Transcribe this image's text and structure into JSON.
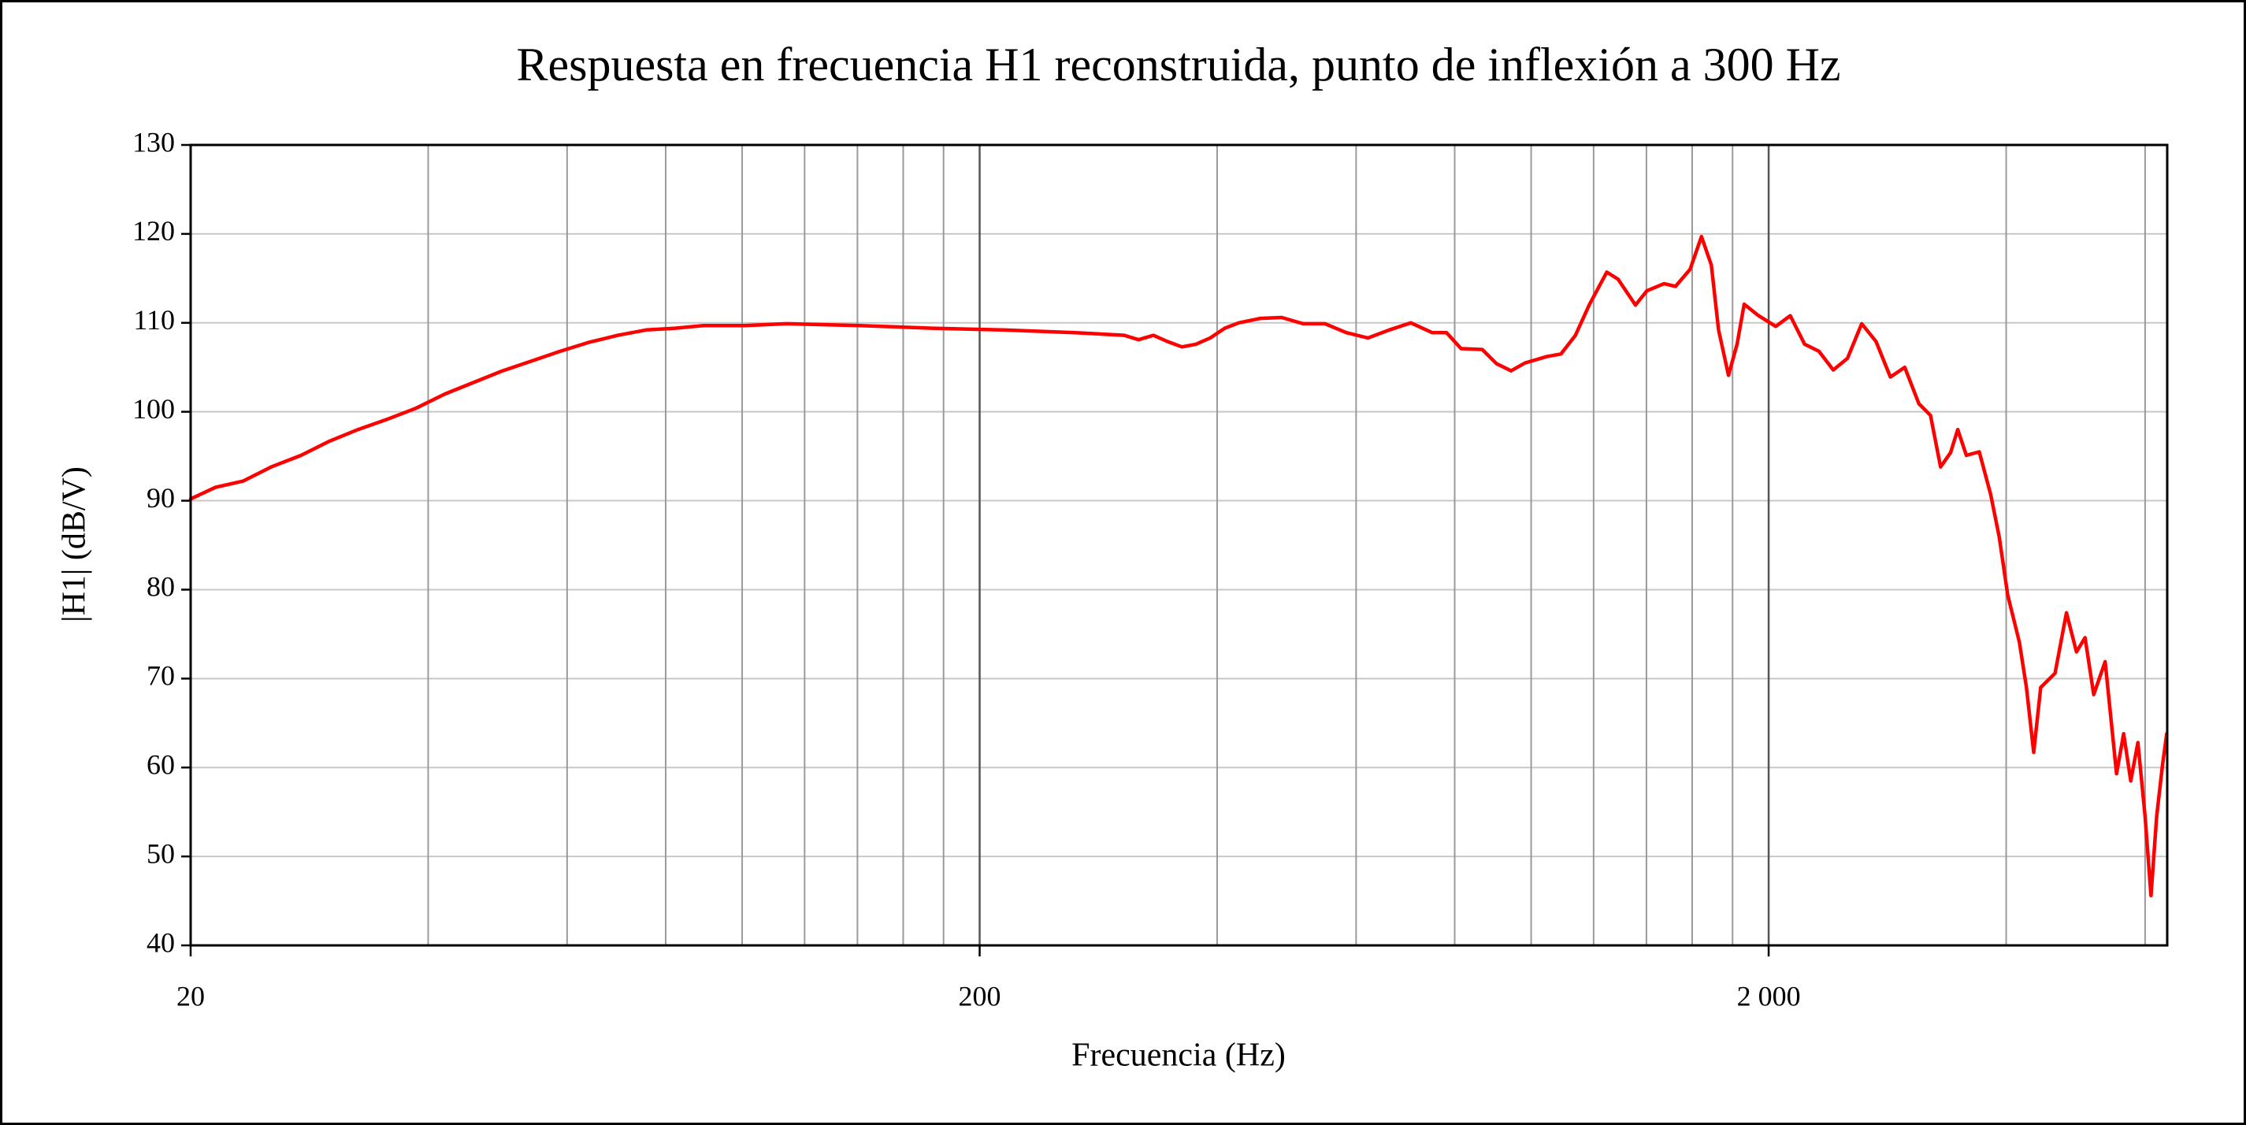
{
  "chart_data": {
    "type": "line",
    "title": "Respuesta en frecuencia H1 reconstruida, punto de inflexión a 300 Hz",
    "x_label": "Frecuencia (Hz)",
    "y_label": "|H1| (dB/V)",
    "xscale": "log",
    "xlim": [
      20,
      6400
    ],
    "ylim": [
      40,
      130
    ],
    "xticks": [
      20,
      200,
      {
        "value": 2000,
        "label": "2 000"
      }
    ],
    "xminor": [
      40,
      60,
      80,
      100,
      120,
      140,
      160,
      180,
      400,
      600,
      800,
      1000,
      1200,
      1400,
      1600,
      1800,
      4000,
      6000
    ],
    "yticks": [
      40,
      50,
      60,
      70,
      80,
      90,
      100,
      110,
      120,
      130
    ],
    "grid": true,
    "color": "#ff0000",
    "x": [
      20,
      21.5,
      23.3,
      25.3,
      27.6,
      30.0,
      32.6,
      35.6,
      38.6,
      42.0,
      45.7,
      49.7,
      54.1,
      58.8,
      63.9,
      69.6,
      75.6,
      82.3,
      89.4,
      100.8,
      114,
      141,
      174,
      214,
      264,
      305,
      318,
      332,
      346,
      361,
      376,
      392,
      409,
      426,
      454,
      483,
      514,
      548,
      583,
      621,
      661,
      704,
      749,
      781,
      815,
      867,
      904,
      943,
      983,
      1046,
      1091,
      1138,
      1186,
      1247,
      1289,
      1356,
      1402,
      1474,
      1524,
      1590,
      1644,
      1692,
      1728,
      1779,
      1824,
      1862,
      1942,
      2042,
      2130,
      2221,
      2316,
      2415,
      2517,
      2624,
      2736,
      2853,
      2975,
      3101,
      3207,
      3303,
      3401,
      3473,
      3561,
      3698,
      3823,
      3920,
      4018,
      4157,
      4244,
      4335,
      4424,
      4613,
      4770,
      4911,
      5036,
      5164,
      5340,
      5521,
      5636,
      5754,
      5876,
      6000,
      6104,
      6206,
      6311,
      6391
    ],
    "values": [
      90.2,
      91.5,
      92.2,
      93.8,
      95.1,
      96.7,
      98.0,
      99.2,
      100.4,
      102.0,
      103.3,
      104.6,
      105.7,
      106.8,
      107.8,
      108.6,
      109.2,
      109.4,
      109.7,
      109.7,
      109.9,
      109.7,
      109.4,
      109.2,
      108.9,
      108.6,
      108.1,
      108.6,
      107.9,
      107.3,
      107.6,
      108.3,
      109.4,
      110.0,
      110.5,
      110.6,
      109.9,
      109.9,
      108.9,
      108.3,
      109.2,
      110.0,
      108.9,
      108.9,
      107.1,
      107.0,
      105.4,
      104.6,
      105.5,
      106.2,
      106.5,
      108.6,
      112.1,
      115.7,
      114.9,
      112.0,
      113.6,
      114.4,
      114.1,
      116.0,
      119.7,
      116.5,
      109.2,
      104.1,
      107.6,
      112.1,
      110.8,
      109.6,
      110.8,
      107.6,
      106.8,
      104.7,
      106.0,
      109.9,
      107.9,
      103.9,
      105.0,
      100.9,
      99.6,
      93.8,
      95.4,
      98.0,
      95.1,
      95.5,
      90.7,
      85.9,
      79.4,
      74.1,
      69.0,
      61.7,
      69.0,
      70.6,
      77.4,
      73.0,
      74.6,
      68.2,
      71.9,
      59.3,
      63.8,
      58.5,
      62.8,
      54.5,
      45.6,
      54.5,
      60.2,
      63.8
    ]
  }
}
